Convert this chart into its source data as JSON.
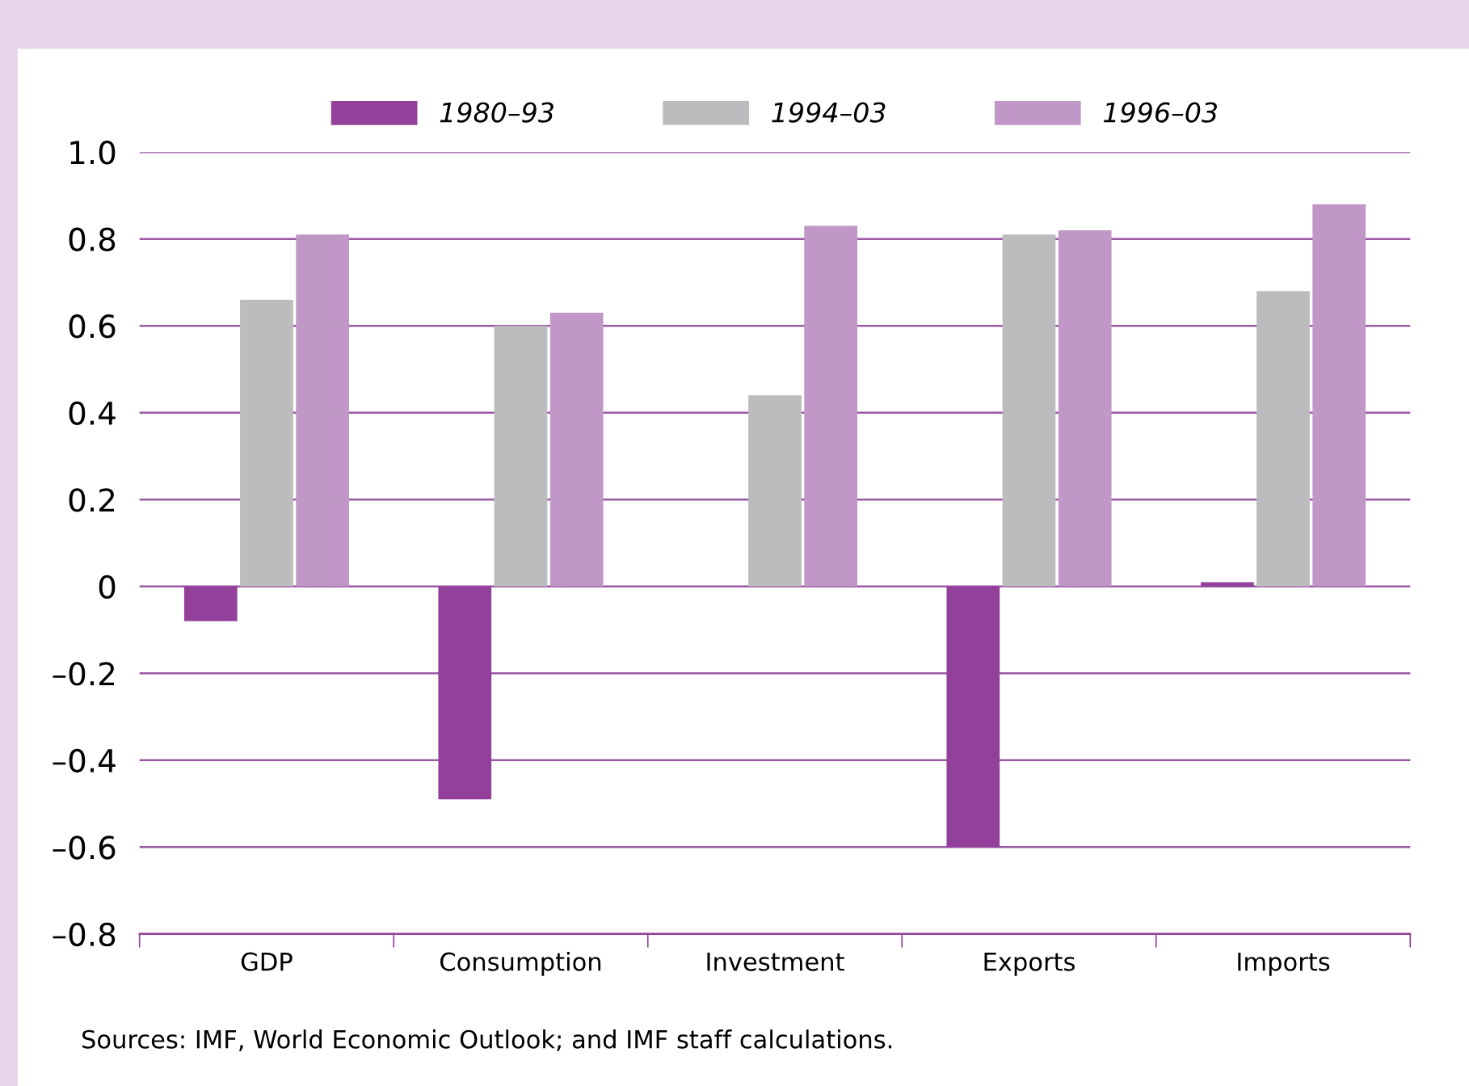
{
  "chart_data": {
    "type": "bar",
    "categories": [
      "GDP",
      "Consumption",
      "Investment",
      "Exports",
      "Imports"
    ],
    "series": [
      {
        "name": "1980–93",
        "color": "#93409a",
        "values": [
          -0.08,
          -0.49,
          0,
          -0.6,
          0.01
        ]
      },
      {
        "name": "1994–03",
        "color": "#bcbcbe",
        "values": [
          0.66,
          0.6,
          0.44,
          0.81,
          0.68
        ]
      },
      {
        "name": "1996–03",
        "color": "#c197c7",
        "values": [
          0.81,
          0.63,
          0.83,
          0.82,
          0.88
        ]
      }
    ],
    "ylim": [
      -0.8,
      1.0
    ],
    "yticks": [
      {
        "value": -0.8,
        "label": "–0.8"
      },
      {
        "value": -0.6,
        "label": "–0.6"
      },
      {
        "value": -0.4,
        "label": "–0.4"
      },
      {
        "value": -0.2,
        "label": "–0.2"
      },
      0,
      0.2,
      0.4,
      0.6,
      0.8,
      {
        "value": 1.0,
        "label": "1.0"
      }
    ],
    "grid": "y",
    "legend": "top",
    "annotations": [
      "Sources: IMF, World Economic Outlook; and IMF staff calculations."
    ]
  }
}
